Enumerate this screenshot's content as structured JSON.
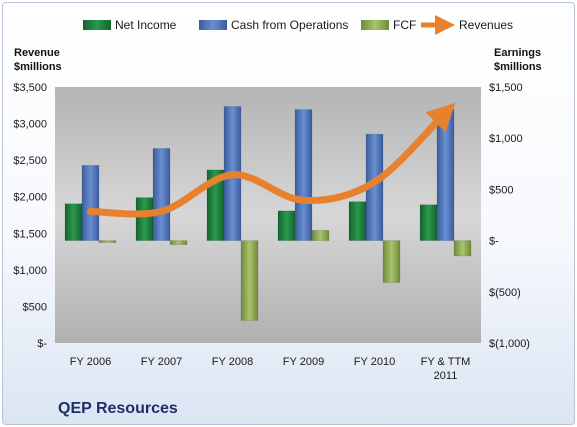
{
  "chart_data": {
    "type": "bar",
    "title": "QEP Resources",
    "categories": [
      "FY 2006",
      "FY 2007",
      "FY 2008",
      "FY 2009",
      "FY 2010",
      "FY & TTM 2011"
    ],
    "left_axis": {
      "label_line1": "Revenue",
      "label_line2": "$millions",
      "ylim": [
        0,
        3500
      ],
      "ticks": [
        0,
        500,
        1000,
        1500,
        2000,
        2500,
        3000,
        3500
      ],
      "tick_labels": [
        "$-",
        "$500",
        "$1,000",
        "$1,500",
        "$2,000",
        "$2,500",
        "$3,000",
        "$3,500"
      ]
    },
    "right_axis": {
      "label_line1": "Earnings",
      "label_line2": "$millions",
      "ylim": [
        -1000,
        1500
      ],
      "ticks": [
        -1000,
        -500,
        0,
        500,
        1000,
        1500
      ],
      "tick_labels": [
        "$(1,000)",
        "$(500)",
        "$-",
        "$500",
        "$1,000",
        "$1,500"
      ]
    },
    "series": [
      {
        "name": "Net Income",
        "axis": "right",
        "kind": "bar",
        "color": "#1e7a3c",
        "values": [
          360,
          420,
          690,
          290,
          380,
          350
        ]
      },
      {
        "name": "Cash from Operations",
        "axis": "right",
        "kind": "bar",
        "color": "#4a6fb5",
        "values": [
          735,
          900,
          1310,
          1280,
          1040,
          1280
        ]
      },
      {
        "name": "FCF",
        "axis": "right",
        "kind": "bar",
        "color": "#8faa55",
        "values": [
          -20,
          -40,
          -780,
          100,
          -410,
          -150
        ]
      },
      {
        "name": "Revenues",
        "axis": "left",
        "kind": "line",
        "color": "#e8812e",
        "values": [
          1800,
          1800,
          2300,
          1950,
          2200,
          3150
        ]
      }
    ],
    "legend_position": "top",
    "grid": false
  }
}
